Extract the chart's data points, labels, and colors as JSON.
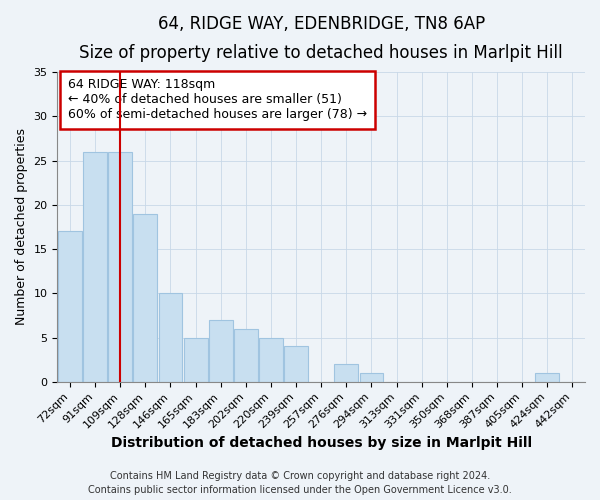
{
  "title": "64, RIDGE WAY, EDENBRIDGE, TN8 6AP",
  "subtitle": "Size of property relative to detached houses in Marlpit Hill",
  "xlabel": "Distribution of detached houses by size in Marlpit Hill",
  "ylabel": "Number of detached properties",
  "bar_labels": [
    "72sqm",
    "91sqm",
    "109sqm",
    "128sqm",
    "146sqm",
    "165sqm",
    "183sqm",
    "202sqm",
    "220sqm",
    "239sqm",
    "257sqm",
    "276sqm",
    "294sqm",
    "313sqm",
    "331sqm",
    "350sqm",
    "368sqm",
    "387sqm",
    "405sqm",
    "424sqm",
    "442sqm"
  ],
  "bar_values": [
    17,
    26,
    26,
    19,
    10,
    5,
    7,
    6,
    5,
    4,
    0,
    2,
    1,
    0,
    0,
    0,
    0,
    0,
    0,
    1,
    0
  ],
  "bar_color": "#c8dff0",
  "bar_edge_color": "#a0c4e0",
  "vline_x_index": 2,
  "vline_color": "#cc0000",
  "annotation_title": "64 RIDGE WAY: 118sqm",
  "annotation_line1": "← 40% of detached houses are smaller (51)",
  "annotation_line2": "60% of semi-detached houses are larger (78) →",
  "annotation_box_color": "#ffffff",
  "annotation_box_edge": "#cc0000",
  "ylim": [
    0,
    35
  ],
  "yticks": [
    0,
    5,
    10,
    15,
    20,
    25,
    30,
    35
  ],
  "footer1": "Contains HM Land Registry data © Crown copyright and database right 2024.",
  "footer2": "Contains public sector information licensed under the Open Government Licence v3.0.",
  "background_color": "#eef3f8",
  "grid_color": "#c8d8e8",
  "title_fontsize": 12,
  "subtitle_fontsize": 10,
  "xlabel_fontsize": 10,
  "ylabel_fontsize": 9,
  "tick_fontsize": 8,
  "annotation_fontsize": 9,
  "footer_fontsize": 7
}
